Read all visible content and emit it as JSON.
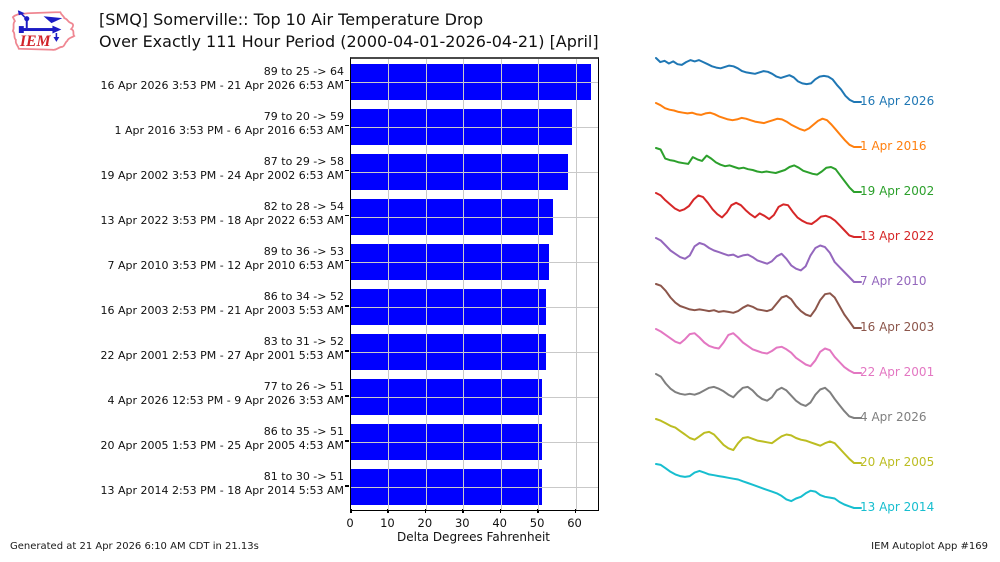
{
  "header": {
    "logo_text": "IEM",
    "title_line1": "[SMQ] Somerville:: Top 10 Air Temperature Drop",
    "title_line2": "Over Exactly 111 Hour Period (2000-04-01-2026-04-21) [April]"
  },
  "footer": {
    "generated": "Generated at 21 Apr 2026 6:10 AM CDT in 21.13s",
    "app": "IEM Autoplot App #169"
  },
  "chart_data": {
    "type": "bar",
    "orientation": "horizontal",
    "title": "[SMQ] Somerville:: Top 10 Air Temperature Drop Over Exactly 111 Hour Period (2000-04-01-2026-04-21) [April]",
    "xlabel": "Delta Degrees Fahrenheit",
    "ylabel": "",
    "xlim": [
      0,
      66
    ],
    "xticks": [
      0,
      10,
      20,
      30,
      40,
      50,
      60
    ],
    "grid": true,
    "bar_color": "#0000ff",
    "grid_color": "#c9c9c9",
    "bars": [
      {
        "range_label": "89 to 25 -> 64",
        "period_label": "16 Apr 2026 3:53 PM - 21 Apr 2026 6:53 AM",
        "value": 64,
        "start_temp": 89,
        "end_temp": 25,
        "spark": {
          "label": "16 Apr 2026",
          "color": "#1f77b4",
          "values": [
            89,
            83,
            85,
            81,
            84,
            80,
            79,
            83,
            86,
            84,
            86,
            83,
            80,
            77,
            75,
            74,
            76,
            78,
            77,
            74,
            70,
            68,
            67,
            66,
            68,
            70,
            69,
            66,
            62,
            60,
            62,
            64,
            61,
            55,
            52,
            51,
            52,
            58,
            62,
            63,
            62,
            58,
            50,
            43,
            34,
            28,
            25
          ]
        }
      },
      {
        "range_label": "79 to 20 -> 59",
        "period_label": "1 Apr 2016 3:53 PM - 6 Apr 2016 6:53 AM",
        "value": 59,
        "start_temp": 79,
        "end_temp": 20,
        "spark": {
          "label": "1 Apr 2016",
          "color": "#ff7f0e",
          "values": [
            79,
            76,
            72,
            70,
            69,
            67,
            66,
            65,
            66,
            64,
            63,
            65,
            66,
            64,
            61,
            59,
            57,
            56,
            57,
            59,
            58,
            56,
            54,
            53,
            52,
            54,
            56,
            58,
            57,
            54,
            50,
            47,
            44,
            42,
            45,
            50,
            55,
            58,
            56,
            50,
            43,
            36,
            29,
            23,
            20
          ]
        }
      },
      {
        "range_label": "87 to 29 -> 58",
        "period_label": "19 Apr 2002 3:53 PM - 24 Apr 2002 6:53 AM",
        "value": 58,
        "start_temp": 87,
        "end_temp": 29,
        "spark": {
          "label": "19 Apr 2002",
          "color": "#2ca02c",
          "values": [
            87,
            85,
            73,
            71,
            70,
            68,
            67,
            66,
            75,
            72,
            70,
            77,
            73,
            68,
            65,
            63,
            64,
            62,
            60,
            61,
            59,
            58,
            56,
            55,
            56,
            55,
            54,
            56,
            58,
            62,
            64,
            61,
            57,
            55,
            53,
            52,
            56,
            61,
            62,
            59,
            51,
            43,
            35,
            29
          ]
        }
      },
      {
        "range_label": "82 to 28 -> 54",
        "period_label": "13 Apr 2022 3:53 PM - 18 Apr 2022 6:53 AM",
        "value": 54,
        "start_temp": 82,
        "end_temp": 28,
        "spark": {
          "label": "13 Apr 2022",
          "color": "#d62728",
          "values": [
            82,
            79,
            73,
            68,
            63,
            60,
            62,
            66,
            74,
            79,
            77,
            70,
            62,
            56,
            52,
            58,
            67,
            70,
            67,
            61,
            56,
            52,
            57,
            54,
            50,
            55,
            65,
            68,
            67,
            59,
            52,
            48,
            45,
            44,
            48,
            53,
            54,
            52,
            48,
            42,
            36,
            30,
            28
          ]
        }
      },
      {
        "range_label": "89 to 36 -> 53",
        "period_label": "7 Apr 2010 3:53 PM - 12 Apr 2010 6:53 AM",
        "value": 53,
        "start_temp": 89,
        "end_temp": 36,
        "spark": {
          "label": "7 Apr 2010",
          "color": "#9467bd",
          "values": [
            89,
            86,
            80,
            74,
            70,
            66,
            64,
            68,
            79,
            83,
            81,
            77,
            74,
            72,
            70,
            68,
            69,
            66,
            68,
            69,
            66,
            62,
            60,
            58,
            61,
            67,
            70,
            64,
            56,
            52,
            50,
            55,
            68,
            77,
            80,
            78,
            71,
            60,
            54,
            48,
            42,
            36
          ]
        }
      },
      {
        "range_label": "86 to 34 -> 52",
        "period_label": "16 Apr 2003 2:53 PM - 21 Apr 2003 5:53 AM",
        "value": 52,
        "start_temp": 86,
        "end_temp": 34,
        "spark": {
          "label": "16 Apr 2003",
          "color": "#8c564b",
          "values": [
            86,
            84,
            78,
            70,
            64,
            60,
            58,
            56,
            55,
            56,
            55,
            54,
            55,
            53,
            54,
            53,
            52,
            54,
            58,
            61,
            59,
            56,
            55,
            54,
            56,
            63,
            70,
            72,
            68,
            60,
            54,
            50,
            48,
            56,
            67,
            74,
            75,
            70,
            60,
            50,
            42,
            34
          ]
        }
      },
      {
        "range_label": "83 to 31 -> 52",
        "period_label": "22 Apr 2001 2:53 PM - 27 Apr 2001 5:53 AM",
        "value": 52,
        "start_temp": 83,
        "end_temp": 31,
        "spark": {
          "label": "22 Apr 2001",
          "color": "#e377c2",
          "values": [
            83,
            80,
            76,
            72,
            68,
            66,
            71,
            77,
            78,
            73,
            67,
            63,
            61,
            60,
            67,
            76,
            78,
            73,
            67,
            63,
            59,
            57,
            55,
            54,
            57,
            61,
            62,
            59,
            55,
            49,
            45,
            41,
            39,
            46,
            56,
            60,
            58,
            50,
            44,
            38,
            34,
            31
          ]
        }
      },
      {
        "range_label": "77 to 26 -> 51",
        "period_label": "4 Apr 2026 12:53 PM - 9 Apr 2026 3:53 AM",
        "value": 51,
        "start_temp": 77,
        "end_temp": 26,
        "spark": {
          "label": "4 Apr 2026",
          "color": "#7f7f7f",
          "values": [
            77,
            74,
            66,
            60,
            56,
            54,
            53,
            54,
            53,
            55,
            58,
            61,
            62,
            60,
            57,
            53,
            50,
            56,
            61,
            62,
            58,
            52,
            48,
            46,
            50,
            58,
            61,
            58,
            52,
            46,
            42,
            40,
            44,
            53,
            59,
            61,
            56,
            48,
            41,
            34,
            28,
            26
          ]
        }
      },
      {
        "range_label": "86 to 35 -> 51",
        "period_label": "20 Apr 2005 1:53 PM - 25 Apr 2005 4:53 AM",
        "value": 51,
        "start_temp": 86,
        "end_temp": 35,
        "spark": {
          "label": "20 Apr 2005",
          "color": "#bcbd22",
          "values": [
            86,
            84,
            81,
            78,
            76,
            72,
            68,
            64,
            62,
            66,
            70,
            71,
            68,
            62,
            56,
            52,
            50,
            58,
            64,
            65,
            63,
            61,
            60,
            59,
            58,
            62,
            66,
            68,
            67,
            64,
            62,
            61,
            59,
            57,
            55,
            58,
            60,
            58,
            52,
            46,
            40,
            35
          ]
        }
      },
      {
        "range_label": "81 to 30 -> 51",
        "period_label": "13 Apr 2014 2:53 PM - 18 Apr 2014 5:53 AM",
        "value": 51,
        "start_temp": 81,
        "end_temp": 30,
        "spark": {
          "label": "13 Apr 2014",
          "color": "#17becf",
          "values": [
            81,
            80,
            76,
            72,
            69,
            67,
            66,
            67,
            71,
            73,
            71,
            69,
            68,
            67,
            66,
            65,
            64,
            63,
            61,
            59,
            57,
            55,
            53,
            51,
            49,
            47,
            44,
            40,
            38,
            41,
            43,
            47,
            50,
            49,
            45,
            43,
            42,
            41,
            37,
            34,
            32,
            30
          ]
        }
      }
    ]
  }
}
